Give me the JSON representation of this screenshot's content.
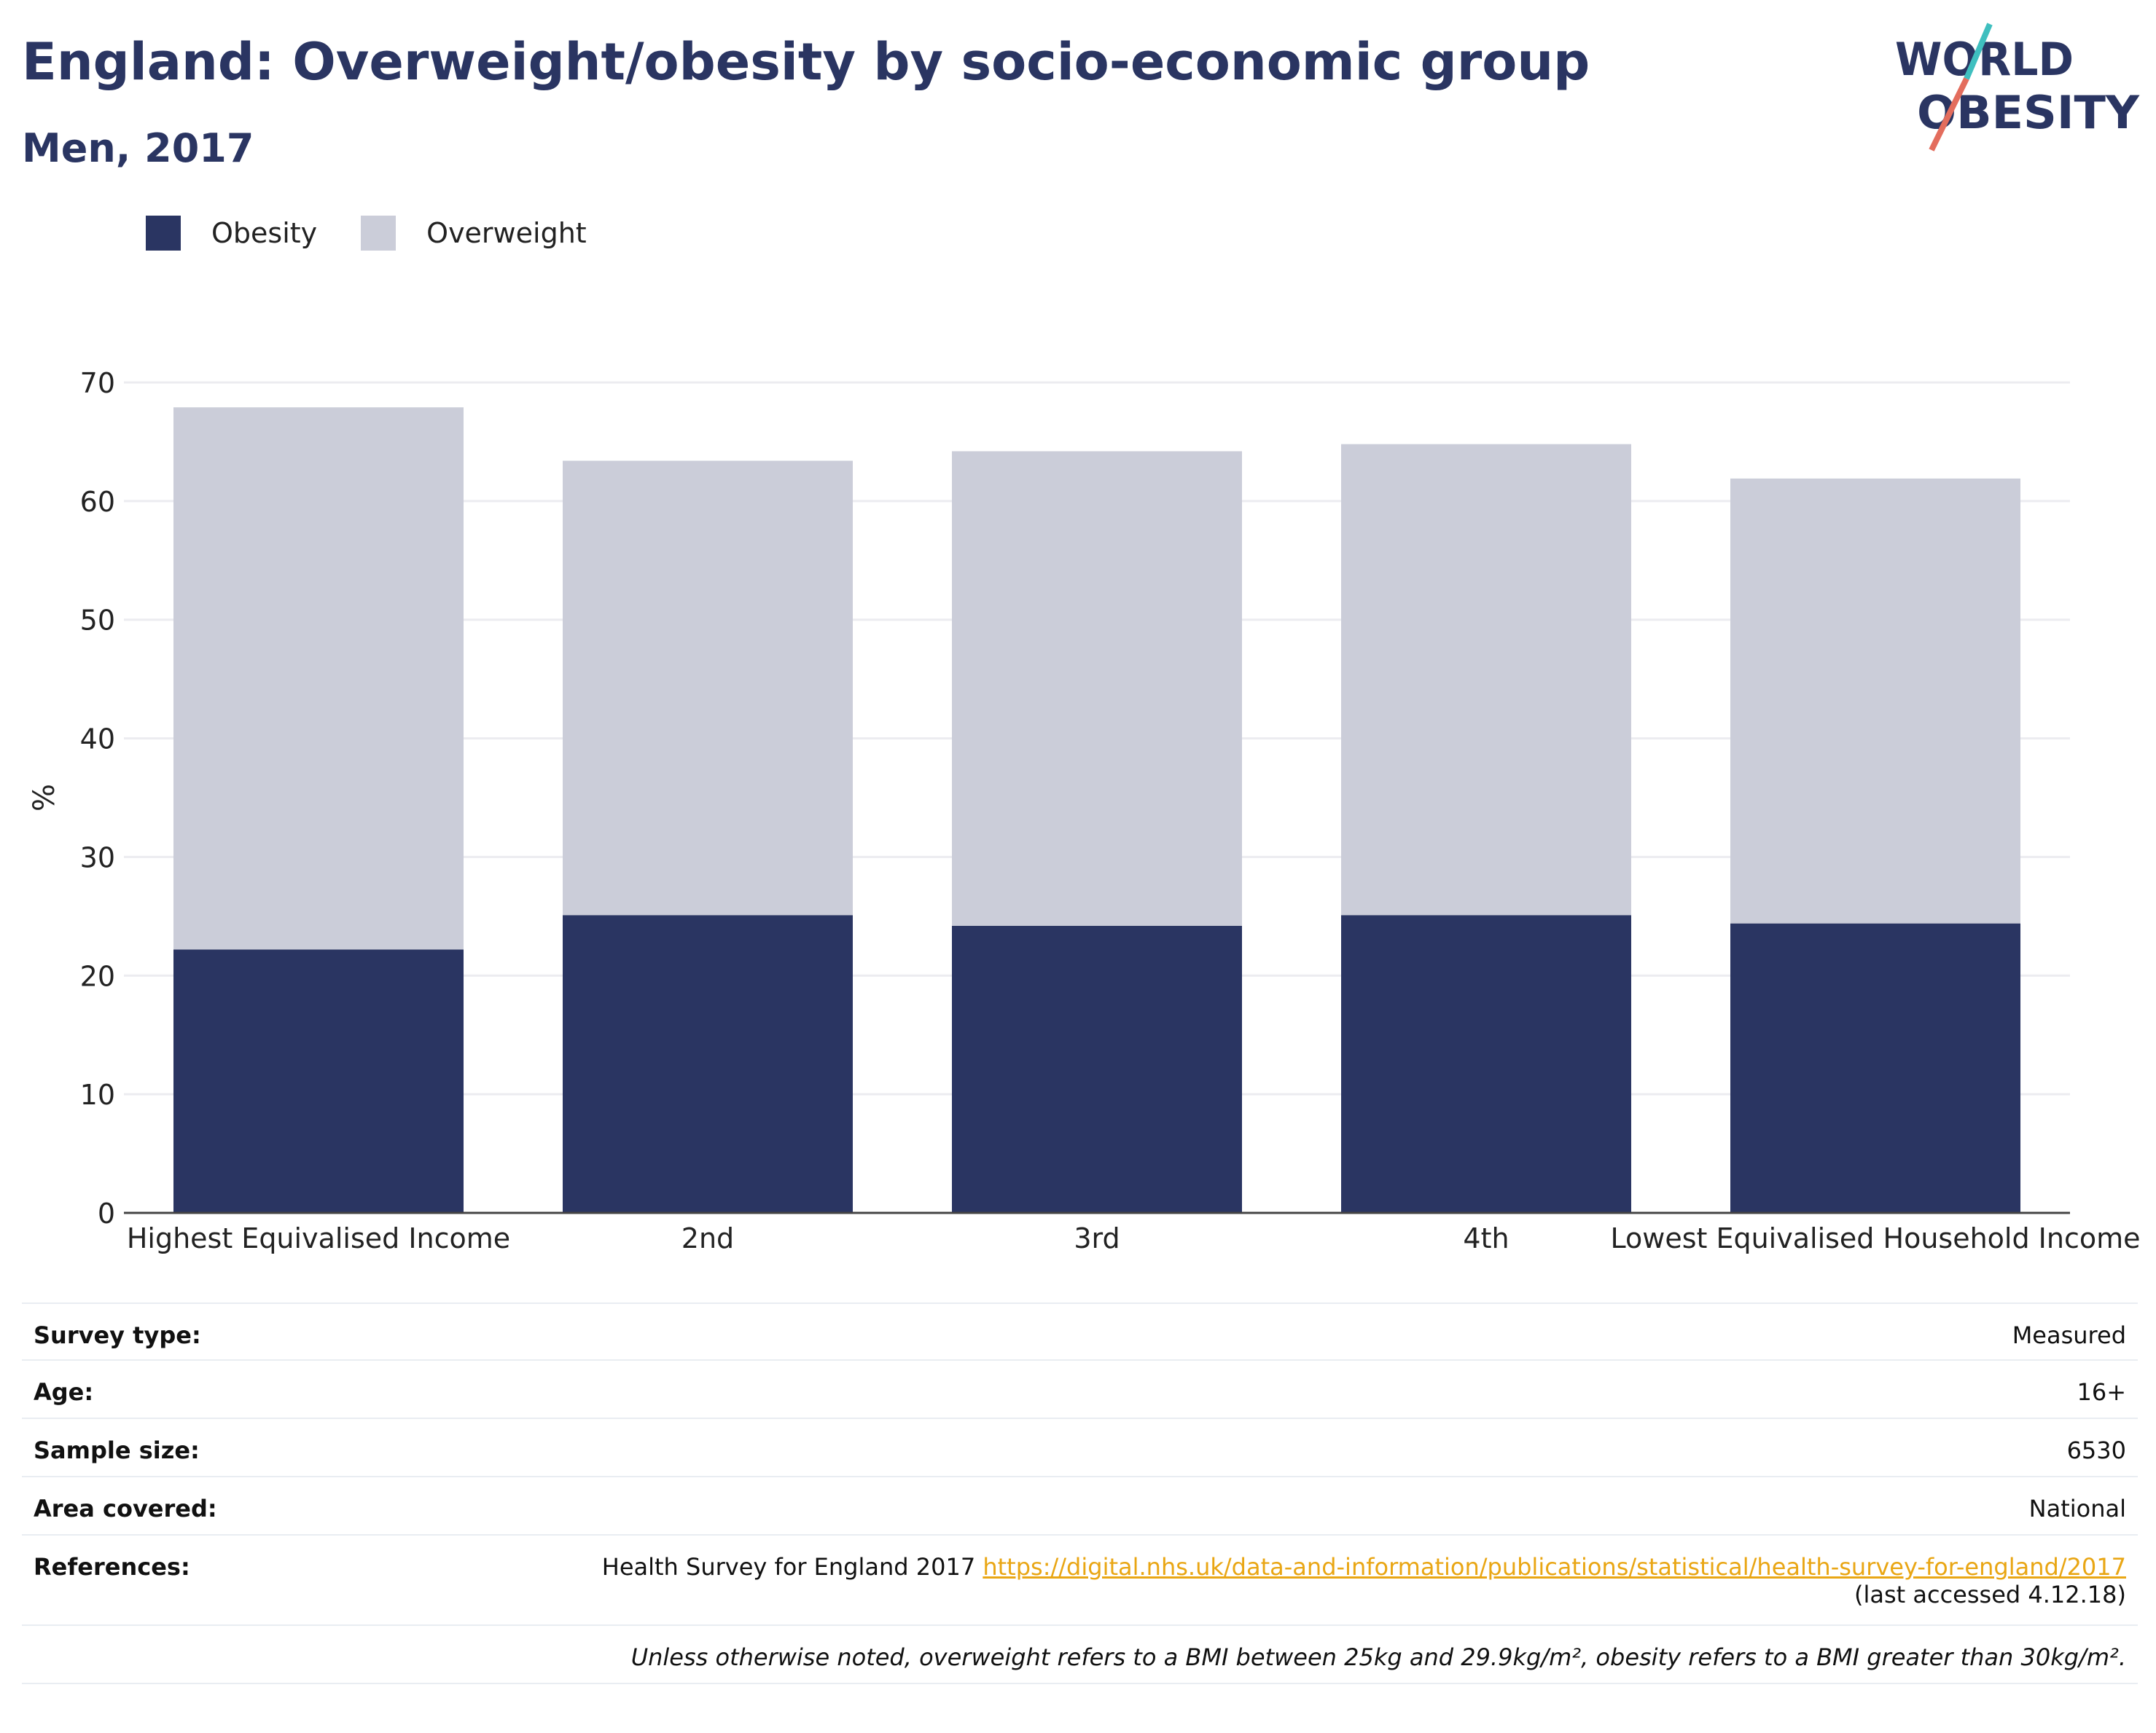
{
  "header": {
    "title": "England: Overweight/obesity by socio-economic group",
    "subtitle": "Men, 2017"
  },
  "logo": {
    "line1": "WORLD",
    "line2": "OBESITY"
  },
  "legend": [
    {
      "label": "Obesity",
      "color": "#2a3562"
    },
    {
      "label": "Overweight",
      "color": "#cbcdd9"
    }
  ],
  "chart_data": {
    "type": "bar",
    "stacked": true,
    "categories": [
      "Highest Equivalised Income",
      "2nd",
      "3rd",
      "4th",
      "Lowest Equivalised Household Income"
    ],
    "series": [
      {
        "name": "Obesity",
        "color": "#2a3562",
        "values": [
          22.2,
          25.1,
          24.2,
          25.1,
          24.4
        ]
      },
      {
        "name": "Overweight",
        "color": "#cbcdd9",
        "values": [
          45.7,
          38.3,
          40.0,
          39.7,
          37.5
        ]
      }
    ],
    "ylabel": "%",
    "ylim": [
      0,
      70
    ],
    "yticks": [
      0,
      10,
      20,
      30,
      40,
      50,
      60,
      70
    ],
    "grid": true,
    "legend_position": "top-left"
  },
  "meta": {
    "survey_type_label": "Survey type:",
    "survey_type": "Measured",
    "age_label": "Age:",
    "age": "16+",
    "sample_size_label": "Sample size:",
    "sample_size": "6530",
    "area_label": "Area covered:",
    "area": "National",
    "references_label": "References:",
    "reference_text": "Health Survey for England 2017",
    "reference_link": "https://digital.nhs.uk/data-and-information/publications/statistical/health-survey-for-england/2017",
    "reference_accessed": "(last accessed 4.12.18)",
    "note": "Unless otherwise noted, overweight refers to a BMI between 25kg and 29.9kg/m², obesity refers to a BMI greater than 30kg/m²."
  }
}
